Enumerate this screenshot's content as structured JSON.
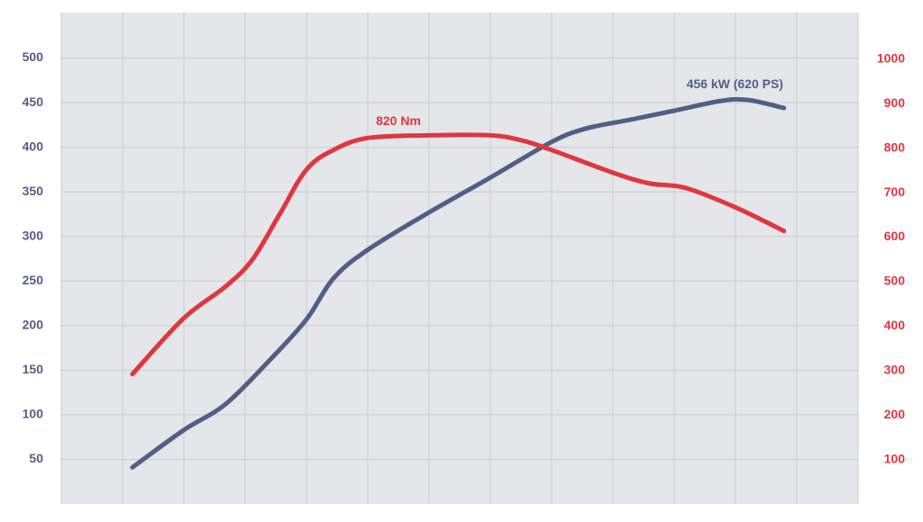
{
  "chart_data": {
    "type": "line",
    "xlim": [
      0,
      13
    ],
    "xticks": [
      0,
      1,
      2,
      3,
      4,
      5,
      6,
      7,
      8,
      9,
      10,
      11,
      12,
      13
    ],
    "show_xtick_labels": false,
    "ylim": [
      0,
      551
    ],
    "yticks": [
      50,
      100,
      150,
      200,
      250,
      300,
      350,
      400,
      450,
      500
    ],
    "y2lim": [
      0,
      1105
    ],
    "y2ticks": [
      100,
      200,
      300,
      400,
      500,
      600,
      700,
      800,
      900,
      1000
    ],
    "grid": true,
    "series": [
      {
        "name": "456 kW (620 PS)",
        "color": "#4f5f86",
        "axis": "y",
        "x": [
          1.16,
          2,
          2.68,
          3.41,
          4,
          4.44,
          5,
          6,
          7,
          8,
          8.56,
          9.29,
          10,
          10.76,
          11.21,
          11.79
        ],
        "values": [
          41,
          83,
          112,
          162,
          207,
          253,
          285,
          327,
          366,
          406,
          421,
          431,
          441,
          452,
          453,
          444
        ]
      },
      {
        "name": "820 Nm",
        "color": "#e0363f",
        "axis": "y2",
        "x": [
          1.16,
          2,
          2.68,
          3.12,
          3.56,
          4,
          4.44,
          5,
          6,
          7,
          7.53,
          8,
          9,
          9.59,
          10.18,
          11,
          11.79
        ],
        "values": [
          292,
          418,
          489,
          550,
          651,
          752,
          796,
          823,
          829,
          829,
          817,
          796,
          745,
          721,
          711,
          667,
          614
        ]
      }
    ]
  }
}
